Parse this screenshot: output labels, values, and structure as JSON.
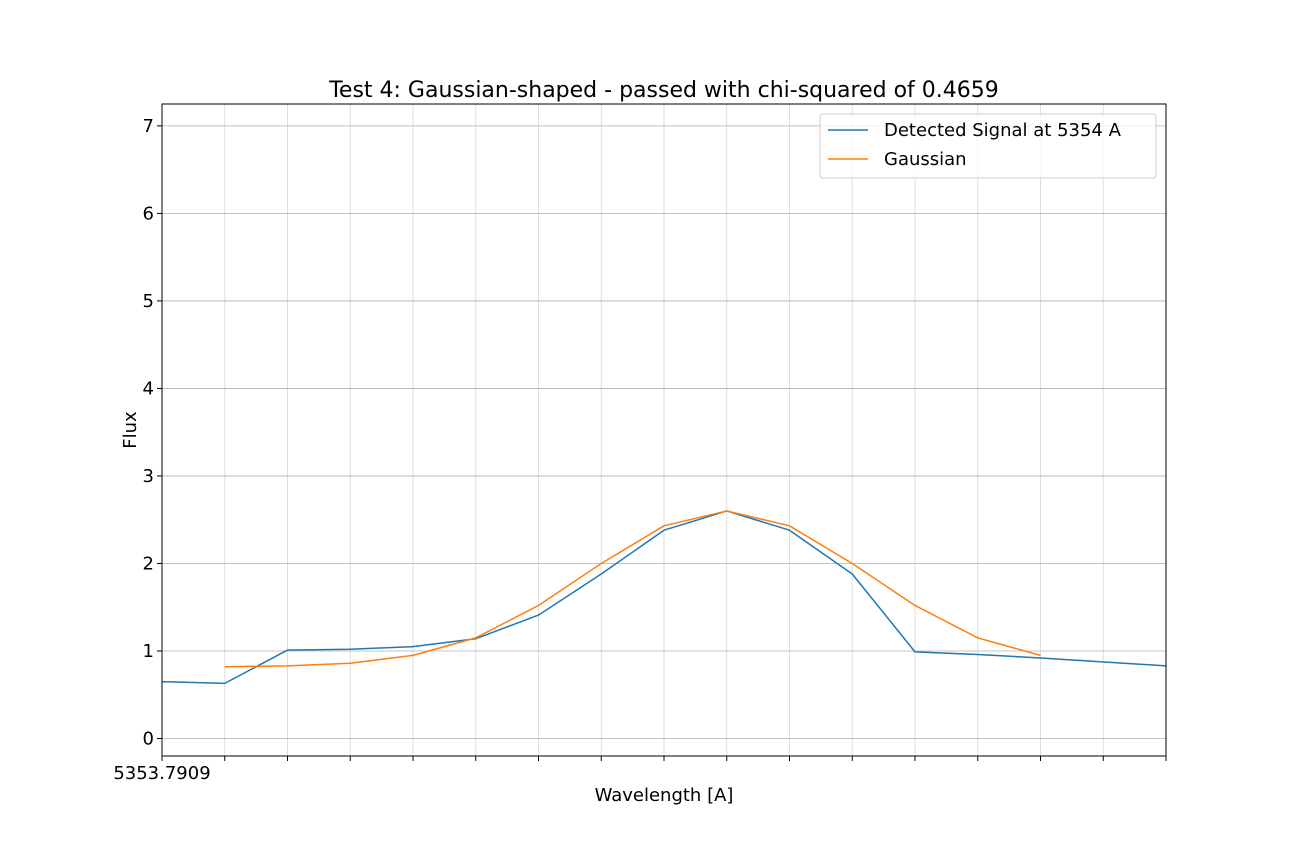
{
  "chart_data": {
    "type": "line",
    "title": "Test 4: Gaussian-shaped - passed with chi-squared of 0.4659",
    "xlabel": "Wavelength [A]",
    "ylabel": "Flux",
    "x_tick_labels": [
      "5353.7909"
    ],
    "y_ticks": [
      0,
      1,
      2,
      3,
      4,
      5,
      6,
      7
    ],
    "ylim": [
      -0.2,
      7.25
    ],
    "x_index_range": [
      0,
      16
    ],
    "grid": true,
    "legend_position": "top-right",
    "series": [
      {
        "name": "Detected Signal at 5354 A",
        "color": "#1f77b4",
        "x": [
          0,
          1,
          2,
          3,
          4,
          5,
          6,
          7,
          8,
          9,
          10,
          11,
          12,
          13,
          14,
          16
        ],
        "y": [
          0.65,
          0.63,
          1.01,
          1.02,
          1.05,
          1.14,
          1.41,
          1.88,
          2.38,
          2.6,
          2.38,
          1.88,
          0.99,
          0.96,
          0.92,
          0.83
        ]
      },
      {
        "name": "Gaussian",
        "color": "#ff7f0e",
        "x": [
          1,
          2,
          3,
          4,
          5,
          6,
          7,
          8,
          9,
          10,
          11,
          12,
          13,
          14
        ],
        "y": [
          0.82,
          0.83,
          0.86,
          0.95,
          1.15,
          1.52,
          2.0,
          2.43,
          2.6,
          2.43,
          2.0,
          1.52,
          1.15,
          0.95
        ]
      }
    ]
  }
}
